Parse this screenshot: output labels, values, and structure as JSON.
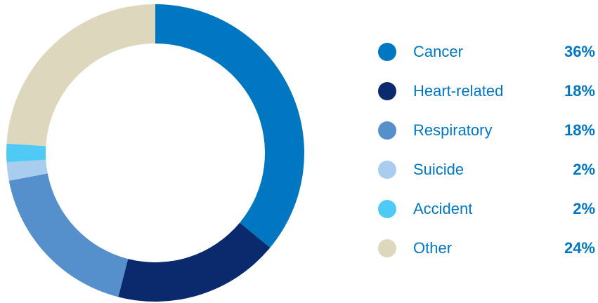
{
  "chart_data": {
    "type": "pie",
    "variant": "donut",
    "title": "",
    "categories": [
      "Cancer",
      "Heart-related",
      "Respiratory",
      "Suicide",
      "Accident",
      "Other"
    ],
    "values": [
      36,
      18,
      18,
      2,
      2,
      24
    ],
    "value_labels": [
      "36%",
      "18%",
      "18%",
      "2%",
      "2%",
      "24%"
    ],
    "unit": "%",
    "colors": [
      "#0077c0",
      "#0b2a6e",
      "#5590cd",
      "#a9cdef",
      "#4fcaf4",
      "#ddd8bd"
    ],
    "legend_position": "right",
    "start_angle": "12 o'clock",
    "direction": "clockwise"
  }
}
